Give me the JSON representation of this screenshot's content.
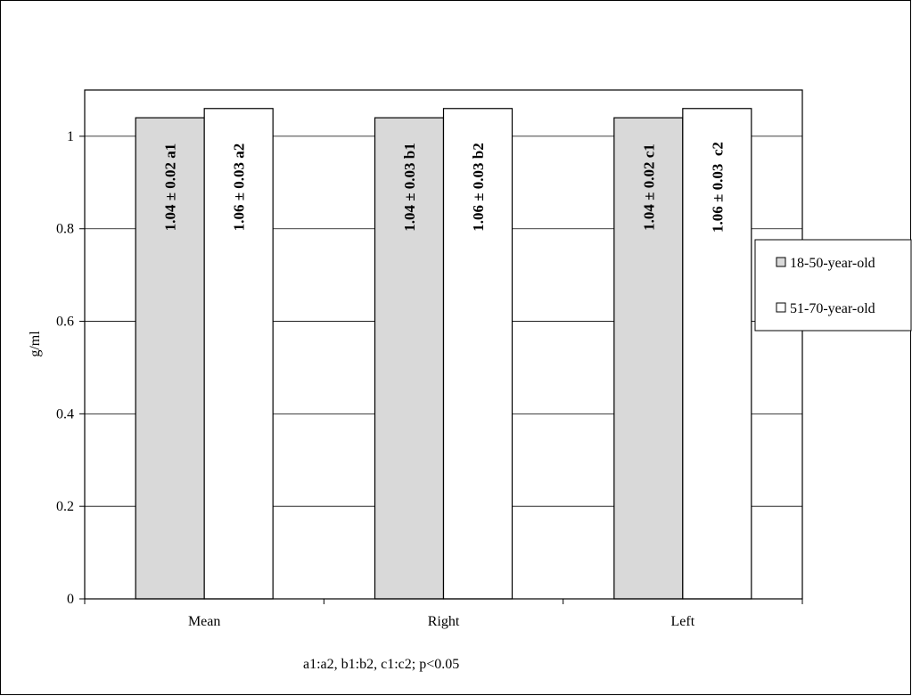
{
  "chart_data": {
    "type": "bar",
    "categories": [
      "Mean",
      "Right",
      "Left"
    ],
    "series": [
      {
        "name": "18-50-year-old",
        "values": [
          1.04,
          1.04,
          1.04
        ],
        "labels": [
          "1.04 ± 0.02 a1",
          "1.04 ± 0.03 b1",
          "1.04 ± 0.02 c1"
        ],
        "color": "#d9d9d9"
      },
      {
        "name": "51-70-year-old",
        "values": [
          1.06,
          1.06,
          1.06
        ],
        "labels": [
          "1.06 ± 0.03 a2",
          "1.06 ± 0.03 b2",
          "1.06 ± 0.03  c2"
        ],
        "color": "#ffffff"
      }
    ],
    "ylabel": "g/ml",
    "ylim": [
      0,
      1.1
    ],
    "yticks": [
      "0",
      "0.2",
      "0.4",
      "0.6",
      "0.8",
      "1"
    ],
    "grid": true,
    "legend": "right",
    "annotation": "a1:a2, b1:b2, c1:c2; p<0.05"
  }
}
